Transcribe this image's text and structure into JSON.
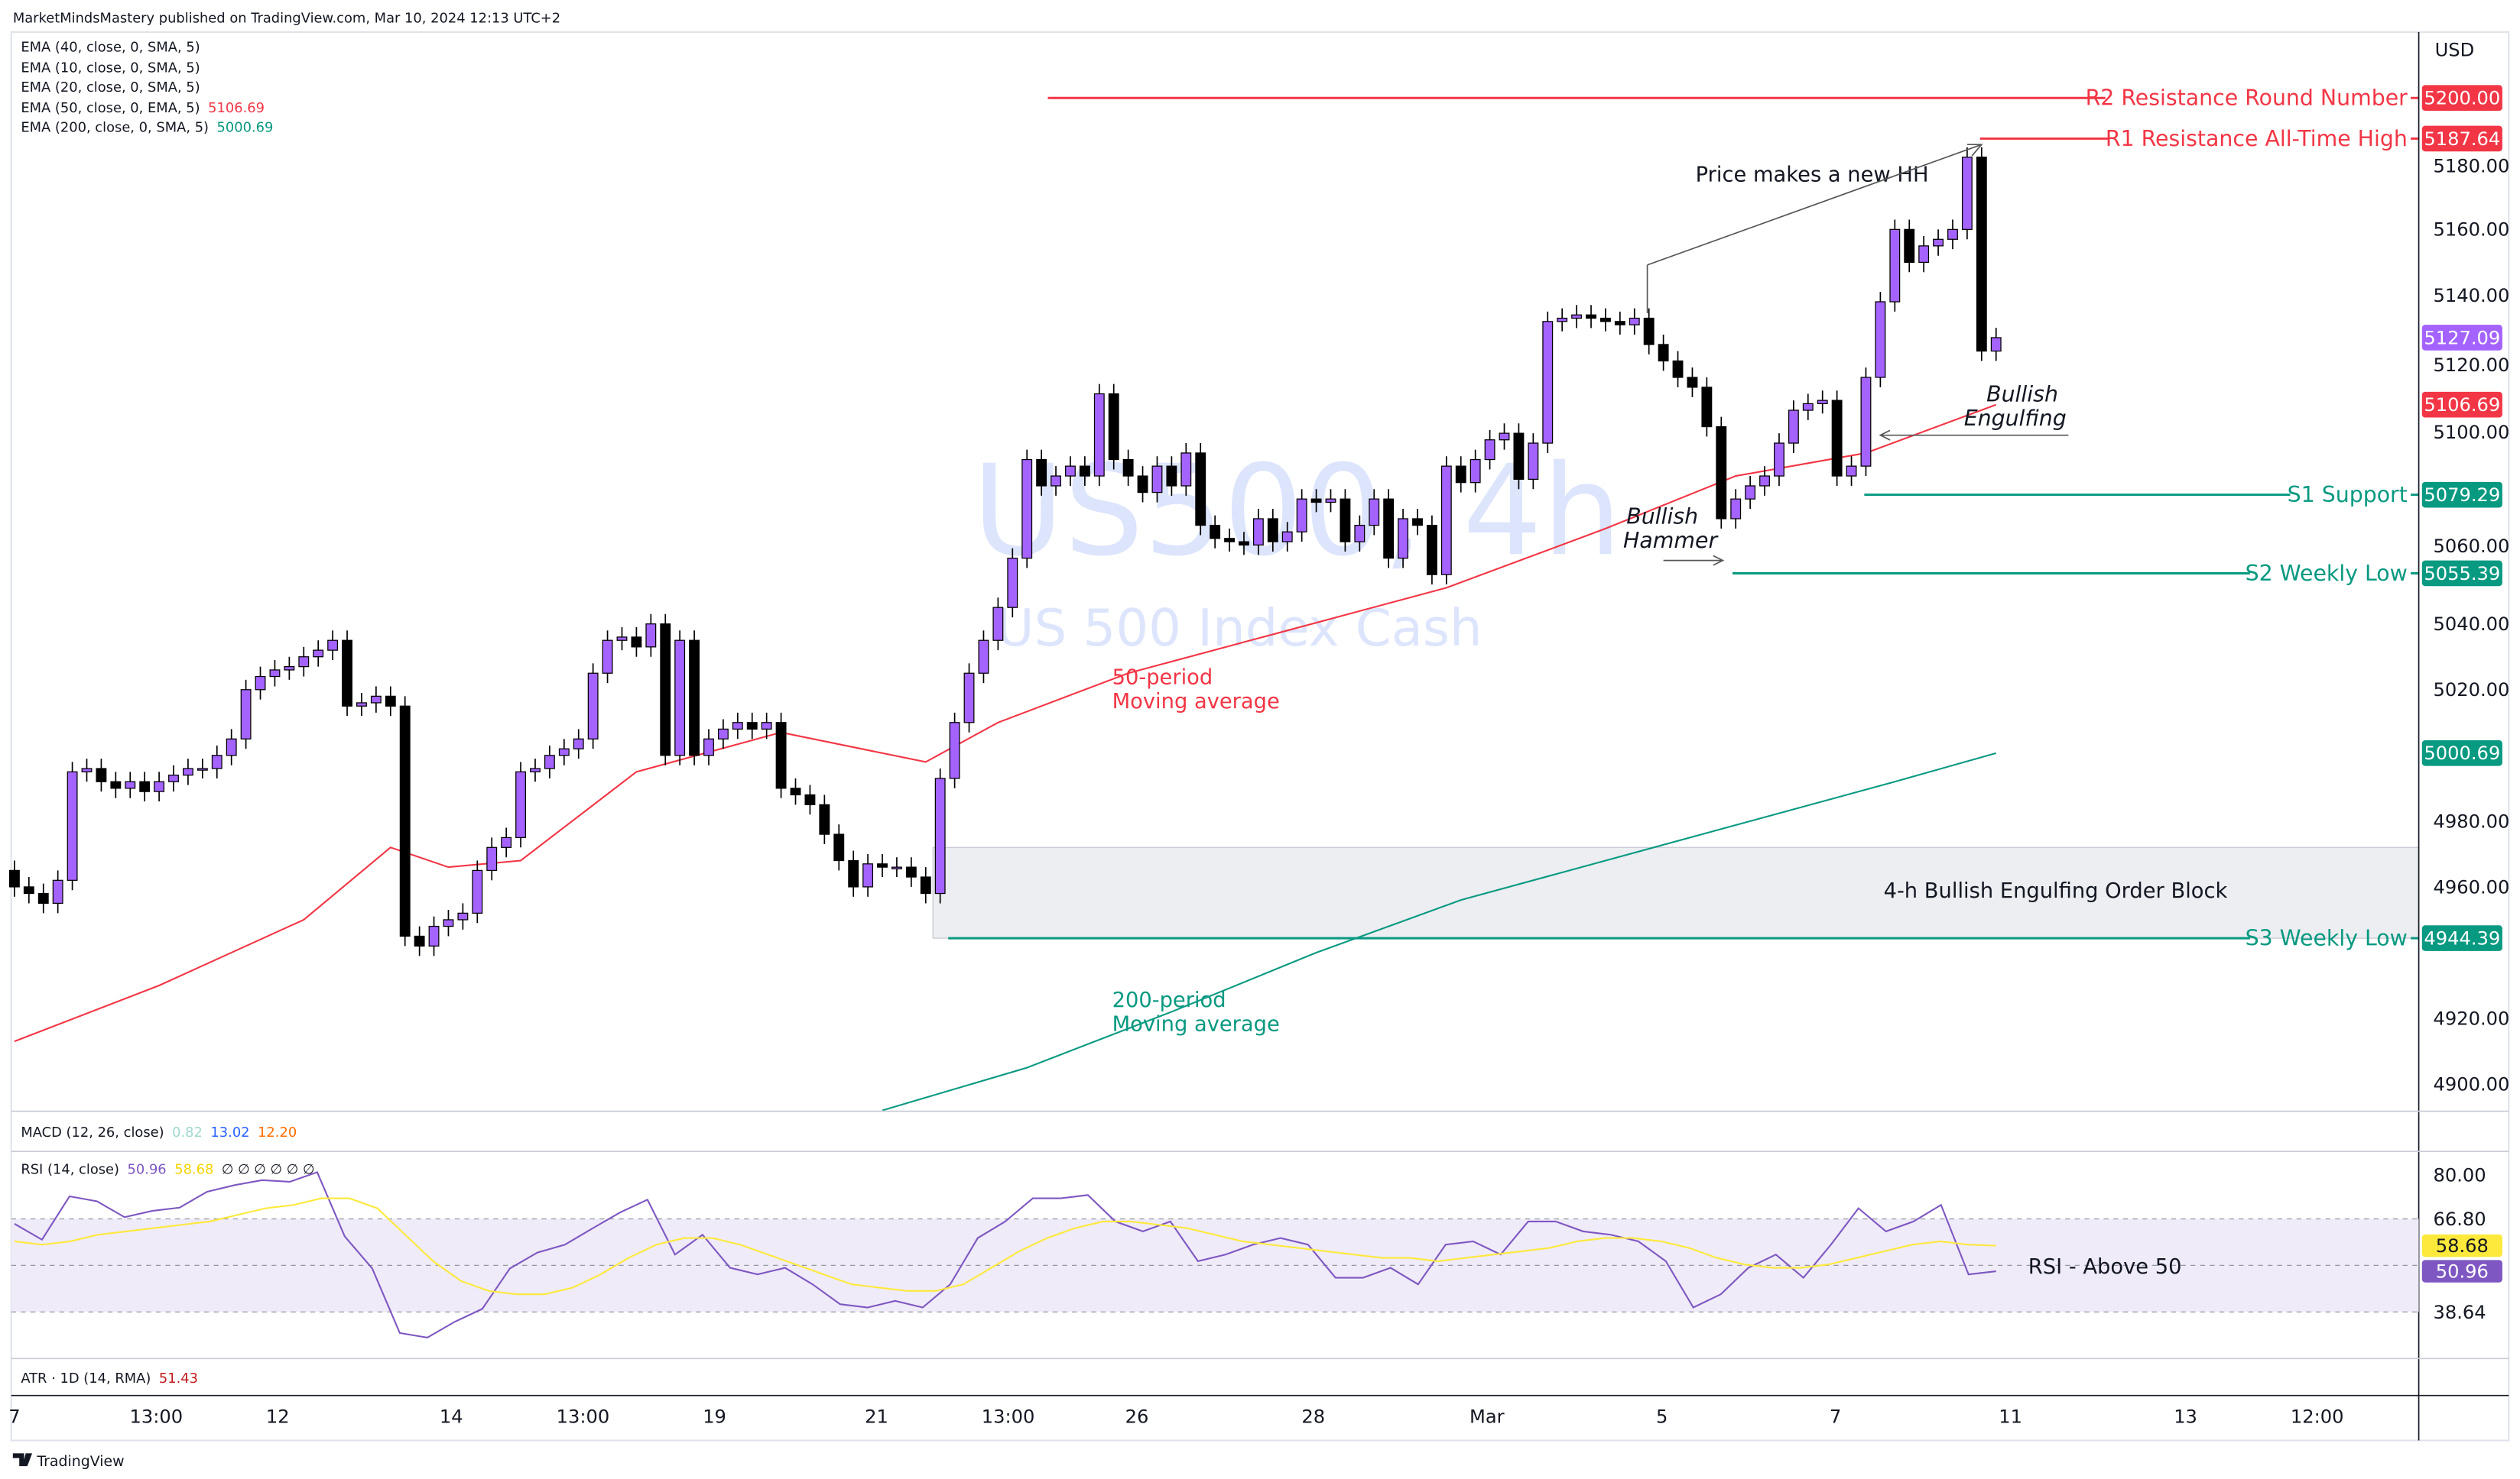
{
  "header": {
    "published": "MarketMindsMastery published on TradingView.com, Mar 10, 2024 12:13 UTC+2"
  },
  "legend": [
    {
      "label": "EMA (40, close, 0, SMA, 5)",
      "value": ""
    },
    {
      "label": "EMA (10, close, 0, SMA, 5)",
      "value": ""
    },
    {
      "label": "EMA (20, close, 0, SMA, 5)",
      "value": ""
    },
    {
      "label": "EMA (50, close, 0, EMA, 5)",
      "value": "5106.69"
    },
    {
      "label": "EMA (200, close, 0, SMA, 5)",
      "value": "5000.69"
    }
  ],
  "watermark": {
    "symbol": "US500, 4h",
    "name": "US 500 Index Cash"
  },
  "currency": "USD",
  "colors": {
    "bull": "#a463ff",
    "bear": "#000000",
    "red": "#f23645",
    "green": "#089981",
    "rsi": "#7e57c2",
    "rsi_ma": "#fde93b"
  },
  "annotations": {
    "hh": "Price makes a new HH",
    "hammer1": "Bullish",
    "hammer2": "Hammer",
    "engulf1": "Bullish",
    "engulf2": "Engulfing",
    "ema50_1": "50-period",
    "ema50_2": "Moving average",
    "ema200_1": "200-period",
    "ema200_2": "Moving average",
    "order_block": "4-h Bullish Engulfing Order Block",
    "rsi_note": "RSI - Above 50"
  },
  "levels": [
    {
      "name": "R2 Resistance Round Number",
      "price": 5200.0,
      "label": "5200.00",
      "color": "red"
    },
    {
      "name": "R1 Resistance All-Time High",
      "price": 5187.64,
      "label": "5187.64",
      "color": "red"
    },
    {
      "name": "S1 Support",
      "price": 5079.29,
      "label": "5079.29",
      "color": "green"
    },
    {
      "name": "S2 Weekly Low",
      "price": 5055.39,
      "label": "5055.39",
      "color": "green"
    },
    {
      "name": "S3 Weekly Low",
      "price": 4944.39,
      "label": "4944.39",
      "color": "green"
    }
  ],
  "price_badges": [
    {
      "label": "5127.09",
      "price": 5127.09,
      "color": "bull"
    },
    {
      "label": "5106.69",
      "price": 5106.69,
      "color": "red"
    },
    {
      "label": "5000.69",
      "price": 5000.69,
      "color": "green"
    }
  ],
  "macd": {
    "label": "MACD (12, 26, close)",
    "v1": "0.82",
    "v2": "13.02",
    "v3": "12.20"
  },
  "rsi": {
    "label": "RSI (14, close)",
    "value": "50.96",
    "ma": "58.68",
    "extras": "∅ ∅ ∅ ∅ ∅ ∅",
    "axis": [
      "80.00",
      "66.80",
      "38.64"
    ]
  },
  "atr": {
    "label": "ATR · 1D (14, RMA)",
    "value": "51.43"
  },
  "footer": {
    "brand": "TradingView"
  },
  "chart_data": {
    "type": "candlestick",
    "title": "US500, 4h",
    "ylabel": "USD",
    "ylim": [
      4890,
      5210
    ],
    "yticks": [
      5180,
      5160,
      5140,
      5120,
      5100,
      5060,
      5040,
      5020,
      4980,
      4960,
      4920,
      4900
    ],
    "xticks": [
      {
        "label": "7",
        "bar": 0
      },
      {
        "label": "13:00",
        "bar": 9.8
      },
      {
        "label": "12",
        "bar": 18.2
      },
      {
        "label": "14",
        "bar": 30.2
      },
      {
        "label": "13:00",
        "bar": 39.3
      },
      {
        "label": "19",
        "bar": 48.4
      },
      {
        "label": "21",
        "bar": 59.6
      },
      {
        "label": "13:00",
        "bar": 68.7
      },
      {
        "label": "26",
        "bar": 77.6
      },
      {
        "label": "28",
        "bar": 89.8
      },
      {
        "label": "Mar",
        "bar": 101.8
      },
      {
        "label": "5",
        "bar": 113.9
      },
      {
        "label": "7",
        "bar": 125.9
      },
      {
        "label": "11",
        "bar": 138
      },
      {
        "label": "13",
        "bar": 150.1
      },
      {
        "label": "12:00",
        "bar": 159.2
      }
    ],
    "first_open": 4965,
    "closes": [
      4960,
      4958,
      4955,
      4962,
      4995,
      4996,
      4992,
      4990,
      4992,
      4989,
      4992,
      4994,
      4996,
      4996,
      5000,
      5005,
      5020,
      5024,
      5026,
      5027,
      5030,
      5032,
      5035,
      5015,
      5016,
      5018,
      5015,
      4945,
      4942,
      4948,
      4950,
      4952,
      4965,
      4972,
      4975,
      4995,
      4996,
      5000,
      5002,
      5005,
      5025,
      5035,
      5036,
      5033,
      5040,
      5000,
      5035,
      5000,
      5005,
      5008,
      5010,
      5008,
      5010,
      4990,
      4988,
      4985,
      4976,
      4968,
      4960,
      4967,
      4966,
      4966,
      4963,
      4958,
      4993,
      5010,
      5025,
      5035,
      5045,
      5060,
      5090,
      5082,
      5085,
      5088,
      5085,
      5110,
      5090,
      5085,
      5080,
      5088,
      5082,
      5092,
      5070,
      5066,
      5065,
      5064,
      5072,
      5065,
      5068,
      5078,
      5077,
      5078,
      5065,
      5070,
      5078,
      5060,
      5072,
      5070,
      5055,
      5088,
      5083,
      5090,
      5096,
      5098,
      5084,
      5095,
      5132,
      5133,
      5134,
      5133,
      5132,
      5131,
      5133,
      5125,
      5120,
      5115,
      5112,
      5100,
      5072,
      5078,
      5082,
      5085,
      5095,
      5105,
      5107,
      5108,
      5085,
      5088,
      5115,
      5138,
      5160,
      5150,
      5155,
      5157,
      5160,
      5182,
      5123,
      5127.09
    ],
    "ema50": [
      [
        0,
        4913
      ],
      [
        10,
        4930
      ],
      [
        20,
        4950
      ],
      [
        26,
        4972
      ],
      [
        30,
        4966
      ],
      [
        35,
        4968
      ],
      [
        43,
        4995
      ],
      [
        53,
        5007
      ],
      [
        63,
        4998
      ],
      [
        68,
        5010
      ],
      [
        77,
        5025
      ],
      [
        88,
        5038
      ],
      [
        99,
        5051
      ],
      [
        110,
        5069
      ],
      [
        119,
        5085
      ],
      [
        128,
        5092
      ],
      [
        137,
        5106.69
      ]
    ],
    "ema200": [
      [
        60,
        4892
      ],
      [
        70,
        4905
      ],
      [
        80,
        4922
      ],
      [
        90,
        4940
      ],
      [
        100,
        4956
      ],
      [
        110,
        4968
      ],
      [
        120,
        4980
      ],
      [
        130,
        4992
      ],
      [
        137,
        5000.69
      ]
    ],
    "order_block": {
      "from_bar": 63.5,
      "top": 4972,
      "bottom": 4944.39
    },
    "rsi_series": [
      65.3,
      60.5,
      73.6,
      72.1,
      67.3,
      69.2,
      70.2,
      75.0,
      77.0,
      78.5,
      78.0,
      80.9,
      61.5,
      51.8,
      32.3,
      30.9,
      35.7,
      39.6,
      51.8,
      56.6,
      59.0,
      63.9,
      68.7,
      72.6,
      56,
      62,
      52,
      50,
      52,
      47,
      41,
      40,
      42,
      40,
      47,
      61,
      66,
      73,
      73,
      74,
      66,
      63,
      66,
      54,
      56,
      59,
      61,
      59,
      49,
      49,
      52,
      47,
      59,
      60,
      56,
      66,
      66,
      63,
      62,
      60,
      54,
      40,
      44,
      52,
      56,
      49,
      59,
      70,
      63,
      66,
      71,
      50,
      50.96
    ],
    "rsi_ma_series": [
      60,
      59,
      60,
      62,
      63,
      64,
      65,
      66,
      68,
      70,
      71,
      73,
      73,
      70,
      62,
      54,
      48,
      45,
      44,
      44,
      46,
      50,
      55,
      59,
      61,
      61,
      59,
      56,
      53,
      50,
      47,
      46,
      45,
      45,
      47,
      52,
      57,
      61,
      64,
      66,
      66,
      65,
      64,
      62,
      60,
      59,
      58,
      57,
      56,
      55,
      55,
      54,
      55,
      56,
      57,
      58,
      60,
      61,
      61,
      60,
      58,
      55,
      53,
      52,
      52,
      53,
      55,
      57,
      59,
      60,
      59,
      58.68
    ],
    "rsi_levels": [
      66.8,
      52.72,
      38.64
    ]
  }
}
